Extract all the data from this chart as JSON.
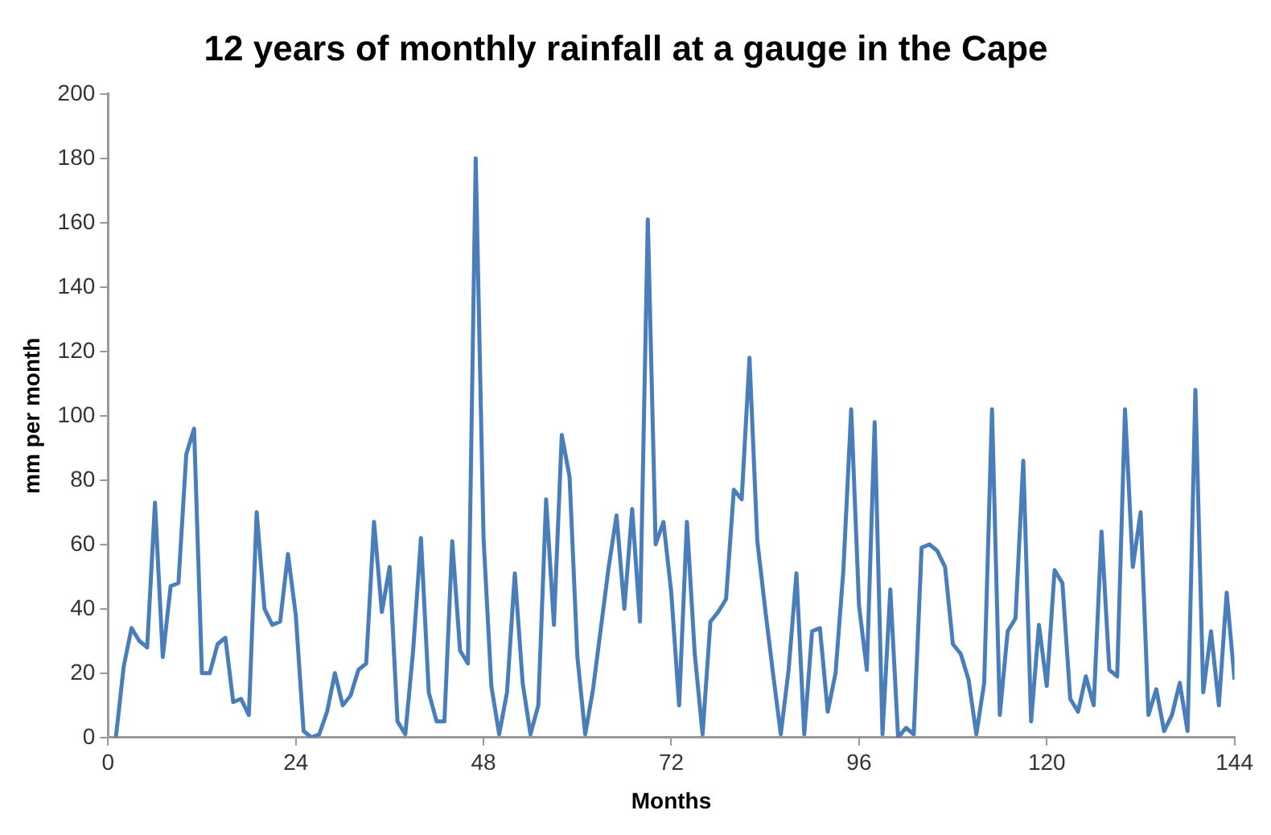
{
  "chart_data": {
    "type": "line",
    "title": "12 years of monthly rainfall at a gauge in the Cape",
    "xlabel": "Months",
    "ylabel": "mm per month",
    "x": [
      1,
      2,
      3,
      4,
      5,
      6,
      7,
      8,
      9,
      10,
      11,
      12,
      13,
      14,
      15,
      16,
      17,
      18,
      19,
      20,
      21,
      22,
      23,
      24,
      25,
      26,
      27,
      28,
      29,
      30,
      31,
      32,
      33,
      34,
      35,
      36,
      37,
      38,
      39,
      40,
      41,
      42,
      43,
      44,
      45,
      46,
      47,
      48,
      49,
      50,
      51,
      52,
      53,
      54,
      55,
      56,
      57,
      58,
      59,
      60,
      61,
      62,
      63,
      64,
      65,
      66,
      67,
      68,
      69,
      70,
      71,
      72,
      73,
      74,
      75,
      76,
      77,
      78,
      79,
      80,
      81,
      82,
      83,
      84,
      85,
      86,
      87,
      88,
      89,
      90,
      91,
      92,
      93,
      94,
      95,
      96,
      97,
      98,
      99,
      100,
      101,
      102,
      103,
      104,
      105,
      106,
      107,
      108,
      109,
      110,
      111,
      112,
      113,
      114,
      115,
      116,
      117,
      118,
      119,
      120,
      121,
      122,
      123,
      124,
      125,
      126,
      127,
      128,
      129,
      130,
      131,
      132,
      133,
      134,
      135,
      136,
      137,
      138,
      139,
      140,
      141,
      142,
      143,
      144
    ],
    "series": [
      {
        "color": "#4a7ebb",
        "values": [
          0,
          22,
          34,
          30,
          28,
          73,
          25,
          47,
          48,
          88,
          96,
          20,
          20,
          29,
          31,
          11,
          12,
          7,
          70,
          40,
          35,
          36,
          57,
          38,
          2,
          0,
          1,
          8,
          20,
          10,
          13,
          21,
          23,
          67,
          39,
          53,
          5,
          1,
          27,
          62,
          14,
          5,
          5,
          61,
          27,
          23,
          180,
          62,
          16,
          1,
          14,
          51,
          17,
          1,
          10,
          74,
          35,
          94,
          81,
          25,
          1,
          15,
          34,
          53,
          69,
          40,
          71,
          36,
          161,
          60,
          67,
          45,
          10,
          67,
          26,
          1,
          36,
          39,
          43,
          77,
          74,
          118,
          61,
          40,
          20,
          1,
          21,
          51,
          1,
          33,
          34,
          8,
          20,
          52,
          102,
          41,
          21,
          98,
          1,
          46,
          0,
          3,
          1,
          59,
          60,
          58,
          53,
          29,
          26,
          18,
          1,
          17,
          102,
          7,
          33,
          37,
          86,
          5,
          35,
          16,
          52,
          48,
          12,
          8,
          19,
          10,
          64,
          21,
          19,
          102,
          53,
          70,
          7,
          15,
          2,
          7,
          17,
          2,
          108,
          14,
          33,
          10,
          45,
          18
        ]
      }
    ],
    "xlim": [
      0,
      144
    ],
    "xticks": [
      0,
      24,
      48,
      72,
      96,
      120,
      144
    ],
    "ylim": [
      0,
      200
    ],
    "yticks": [
      0,
      20,
      40,
      60,
      80,
      100,
      120,
      140,
      160,
      180,
      200
    ],
    "grid": false,
    "legend": false,
    "marker": "none",
    "line_style": "solid"
  }
}
